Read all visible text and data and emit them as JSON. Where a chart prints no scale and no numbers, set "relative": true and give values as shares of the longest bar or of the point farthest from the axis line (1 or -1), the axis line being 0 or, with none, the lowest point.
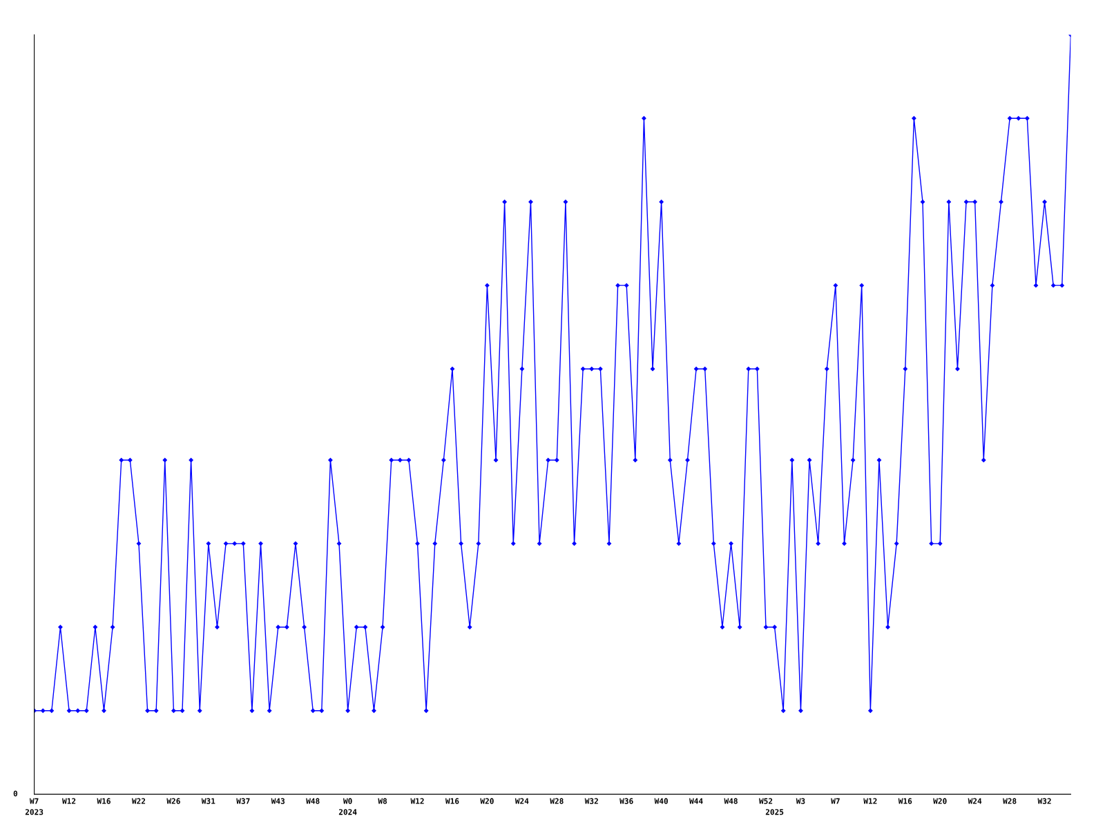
{
  "chart_data": {
    "type": "line",
    "relative": true,
    "marker": "diamond",
    "line_style": "solid",
    "grid": false,
    "legend": false,
    "annotations": [
      "0"
    ],
    "categories": [
      "W7\n2023",
      null,
      null,
      null,
      "W12",
      null,
      null,
      null,
      "W16",
      null,
      null,
      null,
      "W22",
      null,
      null,
      null,
      "W26",
      null,
      null,
      null,
      "W31",
      null,
      null,
      null,
      "W37",
      null,
      null,
      null,
      "W43",
      null,
      null,
      null,
      "W48",
      null,
      null,
      null,
      "W0\n2024",
      null,
      null,
      null,
      "W8",
      null,
      null,
      null,
      "W12",
      null,
      null,
      null,
      "W16",
      null,
      null,
      null,
      "W20",
      null,
      null,
      null,
      "W24",
      null,
      null,
      null,
      "W28",
      null,
      null,
      null,
      "W32",
      null,
      null,
      null,
      "W36",
      null,
      null,
      null,
      "W40",
      null,
      null,
      null,
      "W44",
      null,
      null,
      null,
      "W48",
      null,
      null,
      null,
      "W52",
      "\n2025",
      null,
      null,
      "W3",
      null,
      null,
      null,
      "W7",
      null,
      null,
      null,
      "W12",
      null,
      null,
      null,
      "W16",
      null,
      null,
      null,
      "W20",
      null,
      null,
      null,
      "W24",
      null,
      null,
      null,
      "W28",
      null,
      null,
      null,
      "W32",
      null,
      null,
      null
    ],
    "series": [
      {
        "color": "#0000ff",
        "values": [
          0.11,
          0.11,
          0.11,
          0.22,
          0.11,
          0.11,
          0.11,
          0.22,
          0.11,
          0.22,
          0.44,
          0.44,
          0.33,
          0.11,
          0.11,
          0.44,
          0.11,
          0.11,
          0.44,
          0.11,
          0.33,
          0.22,
          0.33,
          0.33,
          0.33,
          0.11,
          0.33,
          0.11,
          0.22,
          0.22,
          0.33,
          0.22,
          0.11,
          0.11,
          0.44,
          0.33,
          0.11,
          0.22,
          0.22,
          0.11,
          0.22,
          0.44,
          0.44,
          0.44,
          0.33,
          0.11,
          0.33,
          0.44,
          0.56,
          0.33,
          0.22,
          0.33,
          0.67,
          0.44,
          0.78,
          0.33,
          0.56,
          0.78,
          0.33,
          0.44,
          0.44,
          0.78,
          0.33,
          0.56,
          0.56,
          0.56,
          0.33,
          0.67,
          0.67,
          0.44,
          0.89,
          0.56,
          0.78,
          0.44,
          0.33,
          0.44,
          0.56,
          0.56,
          0.33,
          0.22,
          0.33,
          0.22,
          0.56,
          0.56,
          0.22,
          0.22,
          0.11,
          0.44,
          0.11,
          0.44,
          0.33,
          0.56,
          0.67,
          0.33,
          0.44,
          0.67,
          0.11,
          0.44,
          0.22,
          0.33,
          0.56,
          0.89,
          0.78,
          0.33,
          0.33,
          0.78,
          0.56,
          0.78,
          0.78,
          0.44,
          0.67,
          0.78,
          0.89,
          0.89,
          0.89,
          0.67,
          0.78,
          0.67,
          0.67,
          1
        ]
      }
    ]
  }
}
